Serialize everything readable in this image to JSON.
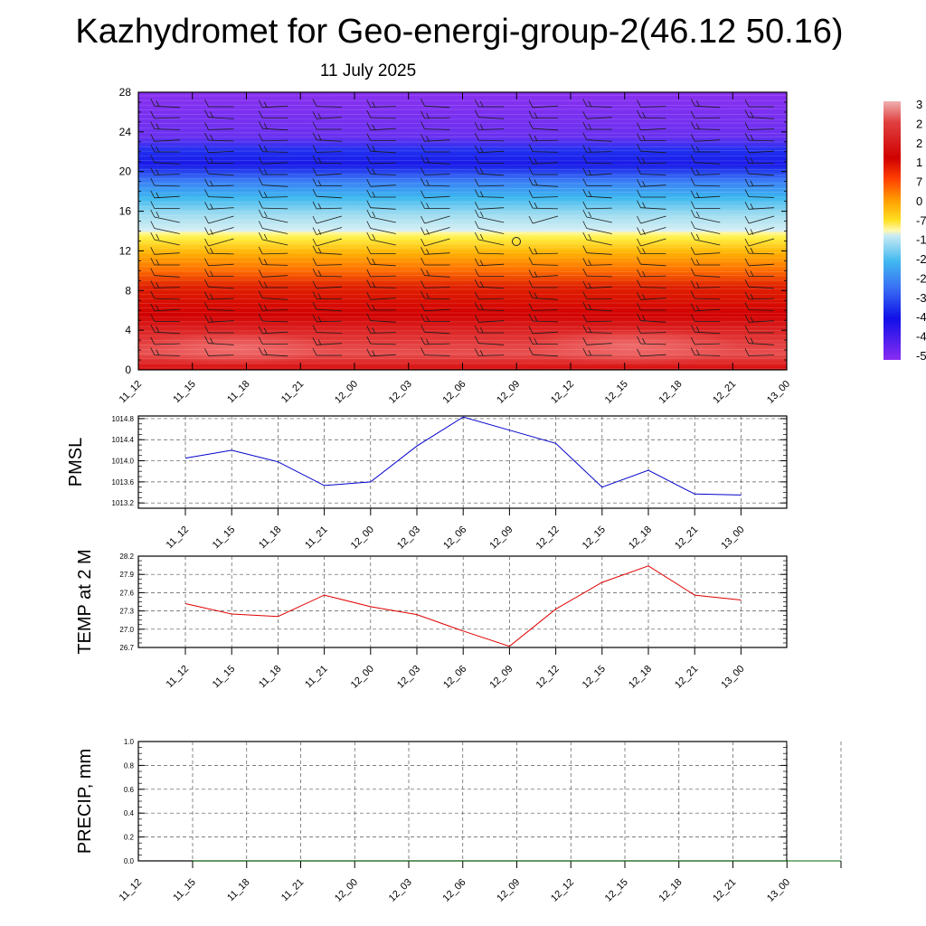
{
  "title": "Kazhydromet for Geo-energi-group-2(46.12 50.16)",
  "subtitle": "11 July 2025",
  "time_labels": [
    "11_12",
    "11_15",
    "11_18",
    "11_21",
    "12_00",
    "12_03",
    "12_06",
    "12_09",
    "12_12",
    "12_15",
    "12_18",
    "12_21",
    "13_00"
  ],
  "chart_data": [
    {
      "type": "heatmap",
      "name": "vertical-profile",
      "x_categories": [
        "11_12",
        "11_15",
        "11_18",
        "11_21",
        "12_00",
        "12_03",
        "12_06",
        "12_09",
        "12_12",
        "12_15",
        "12_18",
        "12_21",
        "13_00"
      ],
      "ylim": [
        0,
        28
      ],
      "y_ticks": [
        "0",
        "4",
        "8",
        "12",
        "16",
        "20",
        "24",
        "28"
      ],
      "colorbar_labels": [
        "3",
        "2",
        "2",
        "1",
        "7",
        "0",
        "-7",
        "-1",
        "-2",
        "-2",
        "-3",
        "-4",
        "-4",
        "-5"
      ],
      "colors": {
        "hot": "#e84848",
        "red": "#d40000",
        "orange": "#ff8c00",
        "yellow": "#ffef30",
        "lightblue": "#9fdcf0",
        "blue": "#1e5cff",
        "darkblue": "#1010e0",
        "purple": "#8c2cf2"
      },
      "overlay": "wind-barbs"
    },
    {
      "type": "line",
      "name": "pmsl",
      "ylabel": "PMSL",
      "categories": [
        "11_12",
        "11_15",
        "11_18",
        "11_21",
        "12_00",
        "12_03",
        "12_06",
        "12_09",
        "12_12",
        "12_15",
        "12_18",
        "12_21",
        "13_00"
      ],
      "values": [
        1014.05,
        1014.2,
        1013.98,
        1013.53,
        1013.6,
        1014.28,
        1014.83,
        1014.58,
        1014.33,
        1013.5,
        1013.82,
        1013.37,
        1013.35
      ],
      "ylim": [
        1013.1,
        1014.85
      ],
      "y_ticks": [
        "1013.2",
        "1013.6",
        "1014.0",
        "1014.4",
        "1014.8"
      ],
      "line_color": "#0000cc",
      "grid": true
    },
    {
      "type": "line",
      "name": "temp",
      "ylabel": "TEMP at 2 M",
      "categories": [
        "11_12",
        "11_15",
        "11_18",
        "11_21",
        "12_00",
        "12_03",
        "12_06",
        "12_09",
        "12_12",
        "12_15",
        "12_18",
        "12_21",
        "13_00"
      ],
      "values": [
        27.42,
        27.25,
        27.21,
        27.56,
        27.37,
        27.24,
        26.97,
        26.72,
        27.33,
        27.77,
        28.04,
        27.56,
        27.48
      ],
      "ylim": [
        26.7,
        28.2
      ],
      "y_ticks": [
        "26.7",
        "27.0",
        "27.3",
        "27.6",
        "27.9",
        "28.2"
      ],
      "line_color": "#e00000",
      "grid": true
    },
    {
      "type": "line",
      "name": "precip",
      "ylabel": "PRECIP, mm",
      "categories": [
        "11_12",
        "11_15",
        "11_18",
        "11_21",
        "12_00",
        "12_03",
        "12_06",
        "12_09",
        "12_12",
        "12_15",
        "12_18",
        "12_21",
        "13_00"
      ],
      "values": [
        0,
        0,
        0,
        0,
        0,
        0,
        0,
        0,
        0,
        0,
        0,
        0,
        0
      ],
      "ylim": [
        0,
        1.0
      ],
      "y_ticks": [
        "0.0",
        "0.2",
        "0.4",
        "0.6",
        "0.8",
        "1.0"
      ],
      "line_color": "#006400",
      "grid": true
    }
  ]
}
